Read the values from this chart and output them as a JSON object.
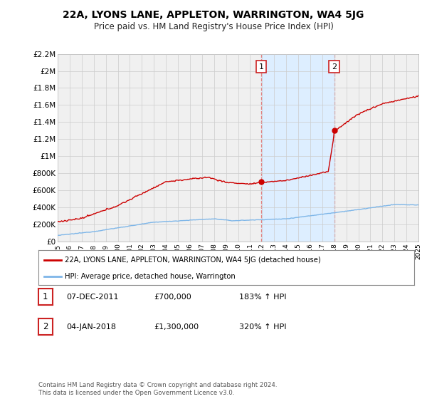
{
  "title": "22A, LYONS LANE, APPLETON, WARRINGTON, WA4 5JG",
  "subtitle": "Price paid vs. HM Land Registry's House Price Index (HPI)",
  "ylabel_ticks": [
    "£0",
    "£200K",
    "£400K",
    "£600K",
    "£800K",
    "£1M",
    "£1.2M",
    "£1.4M",
    "£1.6M",
    "£1.8M",
    "£2M",
    "£2.2M"
  ],
  "ylabel_values": [
    0,
    200000,
    400000,
    600000,
    800000,
    1000000,
    1200000,
    1400000,
    1600000,
    1800000,
    2000000,
    2200000
  ],
  "x_start_year": 1995,
  "x_end_year": 2025,
  "sale1_date": 2011.92,
  "sale1_price": 700000,
  "sale1_label": "1",
  "sale1_hpi_pct": "183%",
  "sale1_date_str": "07-DEC-2011",
  "sale2_date": 2018.01,
  "sale2_price": 1300000,
  "sale2_label": "2",
  "sale2_hpi_pct": "320%",
  "sale2_date_str": "04-JAN-2018",
  "hpi_color": "#7EB6E8",
  "price_color": "#CC0000",
  "vline_color": "#E08080",
  "bg_color": "#FFFFFF",
  "plot_bg_color": "#F0F0F0",
  "grid_color": "#CCCCCC",
  "legend_label_price": "22A, LYONS LANE, APPLETON, WARRINGTON, WA4 5JG (detached house)",
  "legend_label_hpi": "HPI: Average price, detached house, Warrington",
  "footnote": "Contains HM Land Registry data © Crown copyright and database right 2024.\nThis data is licensed under the Open Government Licence v3.0.",
  "highlight_bg_color": "#DDEEFF"
}
